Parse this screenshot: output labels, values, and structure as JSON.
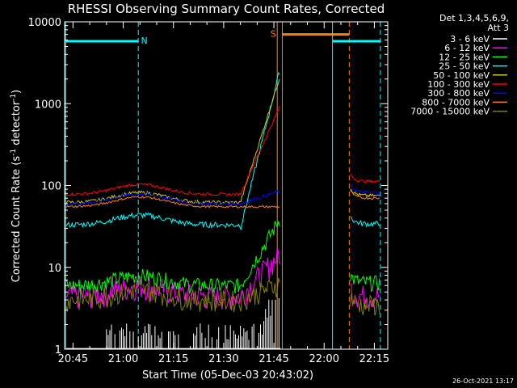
{
  "chart_data": {
    "type": "line",
    "title": "RHESSI Observing Summary Count Rates, Corrected",
    "xlabel": "Start Time (05-Dec-03 20:43:02)",
    "ylabel_main": "Corrected Count Rate (s",
    "ylabel_sup1": "-1",
    "ylabel_mid": " detector",
    "ylabel_sup2": "-1",
    "ylabel_end": ")",
    "ylog": true,
    "ylim": [
      1,
      10000
    ],
    "xlim_minutes": [
      -0.5,
      96
    ],
    "x_ticks": [
      "20:45",
      "21:00",
      "21:15",
      "21:30",
      "21:45",
      "22:00",
      "22:15"
    ],
    "y_ticks": [
      "1",
      "10",
      "100",
      "1000",
      "10000"
    ],
    "legend_header": [
      "Det 1,3,4,5,6,9,",
      "Att 3"
    ],
    "timestamp": "26-Oct-2021 13:17",
    "annotations": {
      "night": "N",
      "saa": "S"
    },
    "series": [
      {
        "name": "3 - 6 keV",
        "color": "#ffffff",
        "baseline": 1.0
      },
      {
        "name": "6 - 12 keV",
        "color": "#ff00ff",
        "baseline": 4.5
      },
      {
        "name": "12 - 25 keV",
        "color": "#00ff00",
        "baseline": 6.0
      },
      {
        "name": "25 - 50 keV",
        "color": "#00ffff",
        "baseline": 33
      },
      {
        "name": "50 - 100 keV",
        "color": "#cccc00",
        "baseline": 62
      },
      {
        "name": "100 - 300 keV",
        "color": "#ff0000",
        "baseline": 78
      },
      {
        "name": "300 - 800 keV",
        "color": "#0000ff",
        "baseline": 60
      },
      {
        "name": "800 - 7000 keV",
        "color": "#ff8000",
        "baseline": 55
      },
      {
        "name": "7000 - 15000 keV",
        "color": "#808000",
        "baseline": 4.0
      }
    ]
  }
}
